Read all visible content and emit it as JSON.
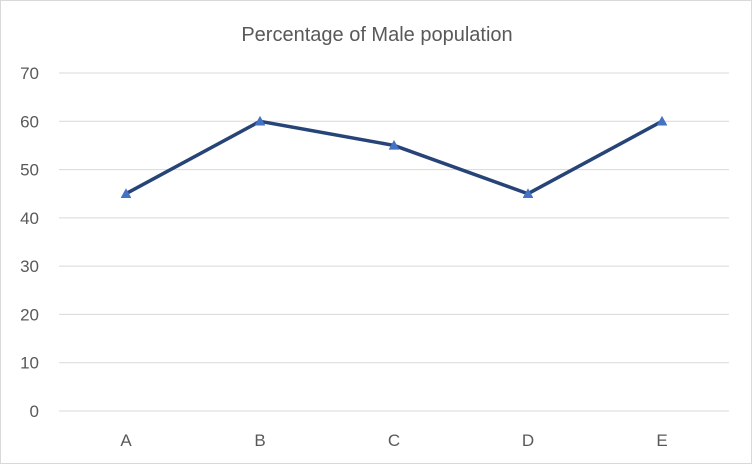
{
  "chart_data": {
    "type": "line",
    "title": "Percentage of Male population",
    "categories": [
      "A",
      "B",
      "C",
      "D",
      "E"
    ],
    "series": [
      {
        "values": [
          45,
          60,
          55,
          45,
          60
        ]
      }
    ],
    "ylim": [
      0,
      70
    ],
    "yticks": [
      0,
      10,
      20,
      30,
      40,
      50,
      60,
      70
    ],
    "xlabel": "",
    "ylabel": "",
    "grid": true,
    "legend": "none",
    "colors": {
      "line": "#264478",
      "marker": "#4472c4",
      "grid": "#d9d9d9",
      "text": "#595959"
    },
    "marker": "triangle"
  }
}
